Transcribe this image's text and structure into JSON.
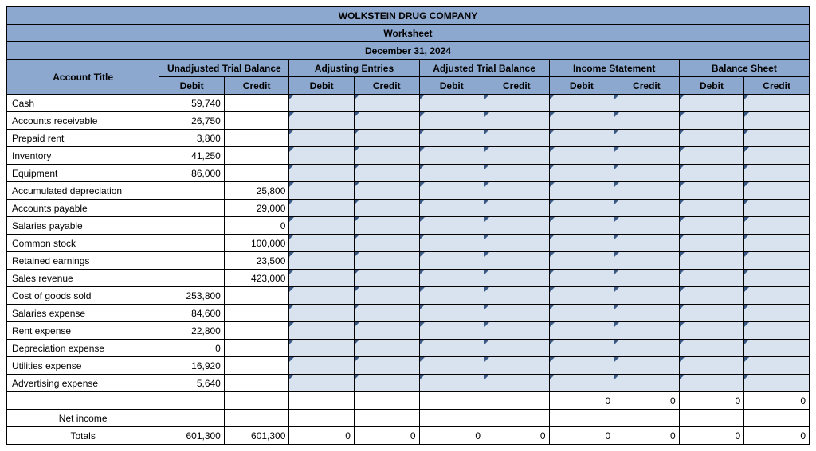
{
  "header": {
    "company": "WOLKSTEIN DRUG COMPANY",
    "title": "Worksheet",
    "date": "December 31, 2024"
  },
  "columns": {
    "acct": "Account Title",
    "sections": [
      "Unadjusted Trial Balance",
      "Adjusting Entries",
      "Adjusted Trial Balance",
      "Income Statement",
      "Balance Sheet"
    ],
    "debit": "Debit",
    "credit": "Credit"
  },
  "rows": [
    {
      "title": "Cash",
      "utb_d": "59,740",
      "utb_c": ""
    },
    {
      "title": "Accounts receivable",
      "utb_d": "26,750",
      "utb_c": ""
    },
    {
      "title": "Prepaid rent",
      "utb_d": "3,800",
      "utb_c": ""
    },
    {
      "title": "Inventory",
      "utb_d": "41,250",
      "utb_c": ""
    },
    {
      "title": "Equipment",
      "utb_d": "86,000",
      "utb_c": ""
    },
    {
      "title": "Accumulated depreciation",
      "utb_d": "",
      "utb_c": "25,800"
    },
    {
      "title": "Accounts payable",
      "utb_d": "",
      "utb_c": "29,000"
    },
    {
      "title": "Salaries payable",
      "utb_d": "",
      "utb_c": "0"
    },
    {
      "title": "Common stock",
      "utb_d": "",
      "utb_c": "100,000"
    },
    {
      "title": "Retained earnings",
      "utb_d": "",
      "utb_c": "23,500"
    },
    {
      "title": "Sales revenue",
      "utb_d": "",
      "utb_c": "423,000"
    },
    {
      "title": "Cost of goods sold",
      "utb_d": "253,800",
      "utb_c": ""
    },
    {
      "title": "Salaries expense",
      "utb_d": "84,600",
      "utb_c": ""
    },
    {
      "title": "Rent expense",
      "utb_d": "22,800",
      "utb_c": ""
    },
    {
      "title": "Depreciation expense",
      "utb_d": "0",
      "utb_c": ""
    },
    {
      "title": "Utilities expense",
      "utb_d": "16,920",
      "utb_c": ""
    },
    {
      "title": "Advertising expense",
      "utb_d": "5,640",
      "utb_c": ""
    }
  ],
  "subtotal": {
    "is_d": "0",
    "is_c": "0",
    "bs_d": "0",
    "bs_c": "0"
  },
  "netincome": {
    "label": "Net income"
  },
  "totals": {
    "label": "Totals",
    "utb_d": "601,300",
    "utb_c": "601,300",
    "adj_d": "0",
    "adj_c": "0",
    "atb_d": "0",
    "atb_c": "0",
    "is_d": "0",
    "is_c": "0",
    "bs_d": "0",
    "bs_c": "0"
  },
  "style": {
    "header_bg": "#8ca8cf",
    "input_bg": "#d9e2ef",
    "border": "#000000",
    "marker": "#3a5a85"
  }
}
